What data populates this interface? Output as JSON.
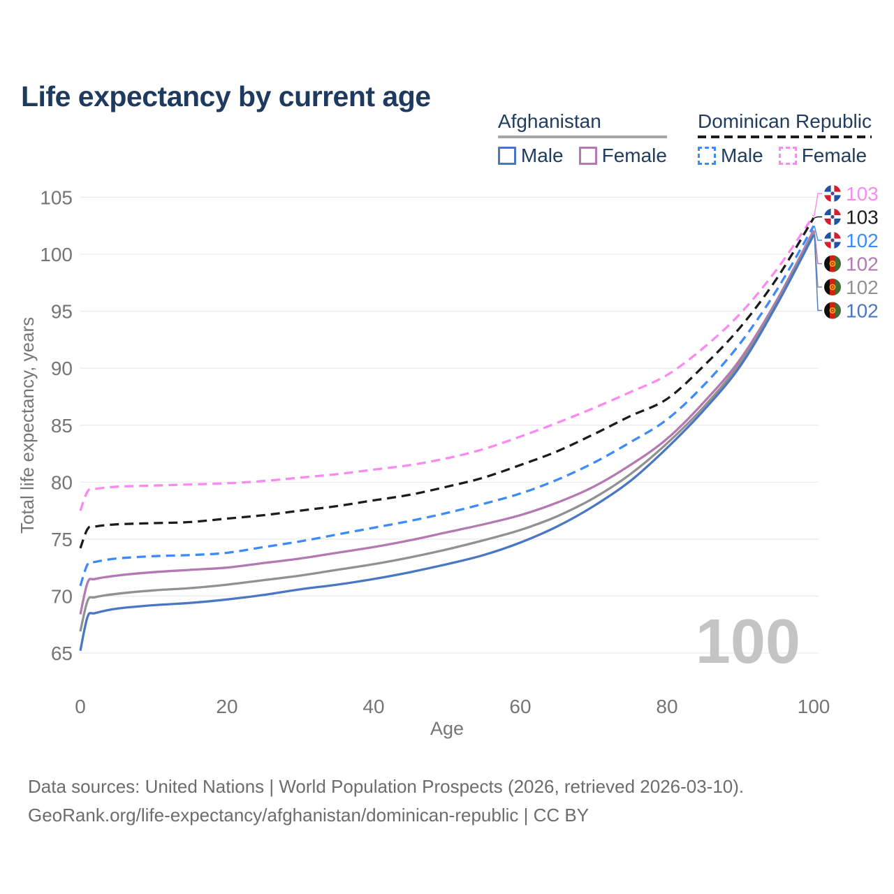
{
  "title": "Life expectancy by current age",
  "legend": {
    "afghanistan": {
      "label": "Afghanistan",
      "male": "Male",
      "female": "Female"
    },
    "dominican_republic": {
      "label": "Dominican Republic",
      "male": "Male",
      "female": "Female"
    }
  },
  "watermark": "100",
  "footer": {
    "line1": "Data sources: United Nations | World Population Prospects (2026, retrieved 2026-03-10).",
    "line2": "GeoRank.org/life-expectancy/afghanistan/dominican-republic | CC BY"
  },
  "colors": {
    "title": "#1e3a5f",
    "legend_text": "#203d5f",
    "af_underline": "#a6a6a6",
    "af_male": "#4a77c4",
    "af_female": "#b478b2",
    "af_all": "#919191",
    "dr_male": "#3d8bf9",
    "dr_female": "#fb8af0",
    "dr_all": "#1c1c1c",
    "grid": "#e9e9e9",
    "tick": "#757575",
    "watermark": "#c4c4c4",
    "footer": "#6c6c6c"
  },
  "chart_data": {
    "type": "line",
    "title": "Life expectancy by current age",
    "xlabel": "Age",
    "ylabel": "Total life expectancy, years",
    "xlim": [
      0,
      100
    ],
    "ylim": [
      65,
      105
    ],
    "xticks": [
      0,
      20,
      40,
      60,
      80,
      100
    ],
    "yticks": [
      65,
      70,
      75,
      80,
      85,
      90,
      95,
      100,
      105
    ],
    "grid": "horizontal",
    "legend_position": "top-right",
    "x": [
      0,
      1,
      2,
      5,
      10,
      15,
      20,
      25,
      30,
      35,
      40,
      45,
      50,
      55,
      60,
      65,
      70,
      75,
      80,
      85,
      90,
      95,
      100
    ],
    "series": [
      {
        "name": "Dominican Republic Female",
        "country": "dominican-republic",
        "sex": "female",
        "dashed": true,
        "color_key": "dr_female",
        "end_label": "103",
        "values": [
          77.5,
          79.2,
          79.4,
          79.6,
          79.7,
          79.8,
          79.9,
          80.1,
          80.4,
          80.7,
          81.1,
          81.5,
          82.1,
          82.9,
          84.0,
          85.2,
          86.5,
          87.9,
          89.4,
          91.8,
          94.8,
          98.7,
          103.4
        ]
      },
      {
        "name": "Dominican Republic All",
        "country": "dominican-republic",
        "sex": "all",
        "dashed": true,
        "color_key": "dr_all",
        "end_label": "103",
        "values": [
          74.2,
          75.9,
          76.1,
          76.3,
          76.4,
          76.5,
          76.8,
          77.1,
          77.5,
          77.9,
          78.4,
          78.9,
          79.6,
          80.4,
          81.5,
          82.7,
          84.2,
          85.8,
          87.3,
          90.2,
          93.6,
          97.9,
          103.2
        ]
      },
      {
        "name": "Dominican Republic Male",
        "country": "dominican-republic",
        "sex": "male",
        "dashed": true,
        "color_key": "dr_male",
        "end_label": "102",
        "values": [
          70.9,
          72.8,
          73.0,
          73.3,
          73.5,
          73.6,
          73.8,
          74.3,
          74.8,
          75.4,
          76.0,
          76.6,
          77.3,
          78.1,
          79.0,
          80.2,
          81.7,
          83.5,
          85.5,
          88.5,
          92.2,
          96.9,
          102.5
        ]
      },
      {
        "name": "Afghanistan Female",
        "country": "afghanistan",
        "sex": "female",
        "dashed": false,
        "color_key": "af_female",
        "end_label": "102",
        "values": [
          68.4,
          71.2,
          71.5,
          71.8,
          72.1,
          72.3,
          72.5,
          72.9,
          73.3,
          73.8,
          74.3,
          74.9,
          75.6,
          76.3,
          77.1,
          78.2,
          79.6,
          81.5,
          83.8,
          87.0,
          90.8,
          96.0,
          102.1
        ]
      },
      {
        "name": "Afghanistan All",
        "country": "afghanistan",
        "sex": "all",
        "dashed": false,
        "color_key": "af_all",
        "end_label": "102",
        "values": [
          66.9,
          69.6,
          69.9,
          70.2,
          70.5,
          70.7,
          71.0,
          71.4,
          71.8,
          72.3,
          72.8,
          73.4,
          74.1,
          74.9,
          75.8,
          77.0,
          78.6,
          80.7,
          83.4,
          86.6,
          90.5,
          95.8,
          101.9
        ]
      },
      {
        "name": "Afghanistan Male",
        "country": "afghanistan",
        "sex": "male",
        "dashed": false,
        "color_key": "af_male",
        "end_label": "102",
        "values": [
          65.2,
          68.2,
          68.5,
          68.9,
          69.2,
          69.4,
          69.7,
          70.1,
          70.6,
          71.0,
          71.5,
          72.1,
          72.8,
          73.6,
          74.7,
          76.1,
          77.9,
          80.1,
          83.0,
          86.3,
          90.2,
          95.6,
          101.7
        ]
      }
    ]
  }
}
